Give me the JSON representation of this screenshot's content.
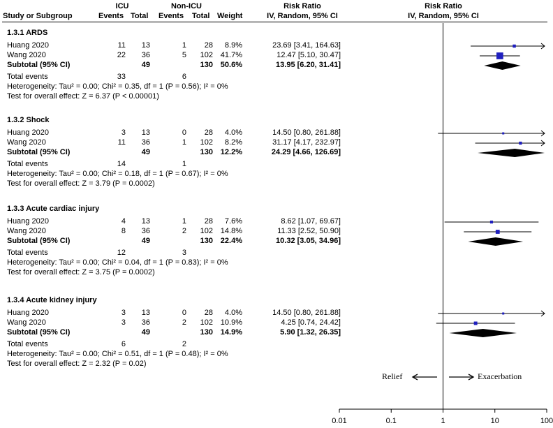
{
  "header": {
    "col_study": "Study or Subgroup",
    "icu": "ICU",
    "non_icu": "Non-ICU",
    "events": "Events",
    "total": "Total",
    "weight": "Weight",
    "rr_title": "Risk Ratio",
    "rr_method": "IV, Random, 95% CI",
    "plot_title": "Risk Ratio",
    "plot_method": "IV, Random, 95% CI"
  },
  "groups": [
    {
      "title": "1.3.1 ARDS",
      "studies": [
        {
          "name": "Huang 2020",
          "e1": "11",
          "t1": "13",
          "e2": "1",
          "t2": "28",
          "weight": "8.9%",
          "ci": "23.69 [3.41, 164.63]"
        },
        {
          "name": "Wang 2020",
          "e1": "22",
          "t1": "36",
          "e2": "5",
          "t2": "102",
          "weight": "41.7%",
          "ci": "12.47 [5.10, 30.47]"
        }
      ],
      "subtotal": {
        "label": "Subtotal (95% CI)",
        "t1": "49",
        "t2": "130",
        "weight": "50.6%",
        "ci": "13.95 [6.20, 31.41]"
      },
      "total_events": {
        "label": "Total events",
        "e1": "33",
        "e2": "6"
      },
      "heterogeneity": "Heterogeneity: Tau² = 0.00; Chi² = 0.35, df = 1 (P = 0.56); I² = 0%",
      "overall": "Test for overall effect: Z = 6.37 (P < 0.00001)"
    },
    {
      "title": "1.3.2 Shock",
      "studies": [
        {
          "name": "Huang 2020",
          "e1": "3",
          "t1": "13",
          "e2": "0",
          "t2": "28",
          "weight": "4.0%",
          "ci": "14.50 [0.80, 261.88]"
        },
        {
          "name": "Wang 2020",
          "e1": "11",
          "t1": "36",
          "e2": "1",
          "t2": "102",
          "weight": "8.2%",
          "ci": "31.17 [4.17, 232.97]"
        }
      ],
      "subtotal": {
        "label": "Subtotal (95% CI)",
        "t1": "49",
        "t2": "130",
        "weight": "12.2%",
        "ci": "24.29 [4.66, 126.69]"
      },
      "total_events": {
        "label": "Total events",
        "e1": "14",
        "e2": "1"
      },
      "heterogeneity": "Heterogeneity: Tau² = 0.00; Chi² = 0.18, df = 1 (P = 0.67); I² = 0%",
      "overall": "Test for overall effect: Z = 3.79 (P = 0.0002)"
    },
    {
      "title": "1.3.3 Acute cardiac injury",
      "studies": [
        {
          "name": "Huang 2020",
          "e1": "4",
          "t1": "13",
          "e2": "1",
          "t2": "28",
          "weight": "7.6%",
          "ci": "8.62 [1.07, 69.67]"
        },
        {
          "name": "Wang 2020",
          "e1": "8",
          "t1": "36",
          "e2": "2",
          "t2": "102",
          "weight": "14.8%",
          "ci": "11.33 [2.52, 50.90]"
        }
      ],
      "subtotal": {
        "label": "Subtotal (95% CI)",
        "t1": "49",
        "t2": "130",
        "weight": "22.4%",
        "ci": "10.32 [3.05, 34.96]"
      },
      "total_events": {
        "label": "Total events",
        "e1": "12",
        "e2": "3"
      },
      "heterogeneity": "Heterogeneity: Tau² = 0.00; Chi² = 0.04, df = 1 (P = 0.83); I² = 0%",
      "overall": "Test for overall effect: Z = 3.75 (P = 0.0002)"
    },
    {
      "title": "1.3.4 Acute kidney injury",
      "studies": [
        {
          "name": "Huang 2020",
          "e1": "3",
          "t1": "13",
          "e2": "0",
          "t2": "28",
          "weight": "4.0%",
          "ci": "14.50 [0.80, 261.88]"
        },
        {
          "name": "Wang 2020",
          "e1": "3",
          "t1": "36",
          "e2": "2",
          "t2": "102",
          "weight": "10.9%",
          "ci": "4.25 [0.74, 24.42]"
        }
      ],
      "subtotal": {
        "label": "Subtotal (95% CI)",
        "t1": "49",
        "t2": "130",
        "weight": "14.9%",
        "ci": "5.90 [1.32, 26.35]"
      },
      "total_events": {
        "label": "Total events",
        "e1": "6",
        "e2": "2"
      },
      "heterogeneity": "Heterogeneity: Tau² = 0.00; Chi² = 0.51, df = 1 (P = 0.48); I² = 0%",
      "overall": "Test for overall effect: Z = 2.32 (P = 0.02)"
    }
  ],
  "chart_data": {
    "type": "scatter",
    "title": "Risk Ratio",
    "subtitle": "IV, Random, 95% CI",
    "xscale": "log",
    "xlim": [
      0.01,
      100
    ],
    "xticks": [
      "0.01",
      "0.1",
      "1",
      "10",
      "100"
    ],
    "xtick_values": [
      0.01,
      0.1,
      1,
      10,
      100
    ],
    "left_label": "Relief",
    "right_label": "Exacerbation",
    "colors": {
      "square": "#1f1fbf",
      "diamond": "#000000",
      "line": "#000000"
    },
    "series": [
      {
        "name": "1.3.1 ARDS",
        "studies": [
          {
            "name": "Huang 2020",
            "rr": 23.69,
            "lo": 3.41,
            "hi": 164.63,
            "weight": 8.9
          },
          {
            "name": "Wang 2020",
            "rr": 12.47,
            "lo": 5.1,
            "hi": 30.47,
            "weight": 41.7
          }
        ],
        "subtotal": {
          "rr": 13.95,
          "lo": 6.2,
          "hi": 31.41
        }
      },
      {
        "name": "1.3.2 Shock",
        "studies": [
          {
            "name": "Huang 2020",
            "rr": 14.5,
            "lo": 0.8,
            "hi": 261.88,
            "weight": 4.0
          },
          {
            "name": "Wang 2020",
            "rr": 31.17,
            "lo": 4.17,
            "hi": 232.97,
            "weight": 8.2
          }
        ],
        "subtotal": {
          "rr": 24.29,
          "lo": 4.66,
          "hi": 126.69
        }
      },
      {
        "name": "1.3.3 Acute cardiac injury",
        "studies": [
          {
            "name": "Huang 2020",
            "rr": 8.62,
            "lo": 1.07,
            "hi": 69.67,
            "weight": 7.6
          },
          {
            "name": "Wang 2020",
            "rr": 11.33,
            "lo": 2.52,
            "hi": 50.9,
            "weight": 14.8
          }
        ],
        "subtotal": {
          "rr": 10.32,
          "lo": 3.05,
          "hi": 34.96
        }
      },
      {
        "name": "1.3.4 Acute kidney injury",
        "studies": [
          {
            "name": "Huang 2020",
            "rr": 14.5,
            "lo": 0.8,
            "hi": 261.88,
            "weight": 4.0
          },
          {
            "name": "Wang 2020",
            "rr": 4.25,
            "lo": 0.74,
            "hi": 24.42,
            "weight": 10.9
          }
        ],
        "subtotal": {
          "rr": 5.9,
          "lo": 1.32,
          "hi": 26.35
        }
      }
    ]
  }
}
